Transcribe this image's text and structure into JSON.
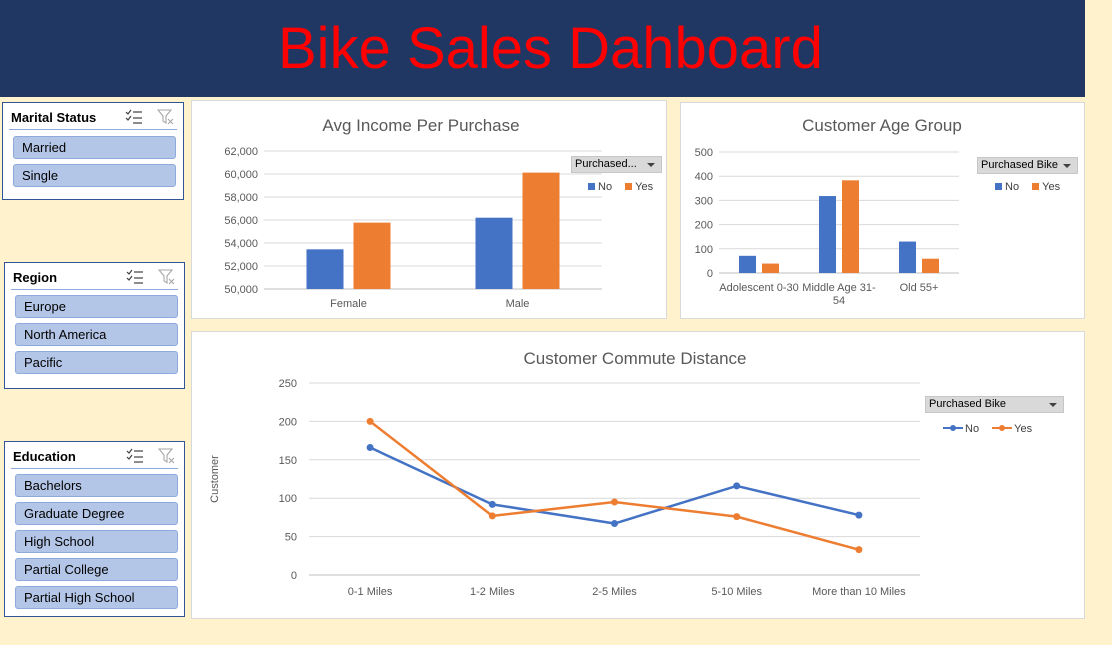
{
  "header": {
    "title": "Bike Sales Dahboard"
  },
  "colors": {
    "header_bg": "#203764",
    "title": "#ff0000",
    "no": "#4472c4",
    "yes": "#ed7d31",
    "background": "#fff2cc",
    "slicer_item": "#b4c6e7"
  },
  "slicers": {
    "marital": {
      "title": "Marital Status",
      "items": [
        "Married",
        "Single"
      ]
    },
    "region": {
      "title": "Region",
      "items": [
        "Europe",
        "North America",
        "Pacific"
      ]
    },
    "education": {
      "title": "Education",
      "items": [
        "Bachelors",
        "Graduate Degree",
        "High School",
        "Partial College",
        "Partial High School"
      ]
    },
    "icons": [
      "multi-select-icon",
      "clear-filter-icon"
    ]
  },
  "chart_data": [
    {
      "id": "income",
      "type": "bar",
      "title": "Avg Income Per Purchase",
      "categories": [
        "Female",
        "Male"
      ],
      "series": [
        {
          "name": "No",
          "values": [
            53450,
            56200
          ]
        },
        {
          "name": "Yes",
          "values": [
            55770,
            60120
          ]
        }
      ],
      "ylim": [
        50000,
        62000
      ],
      "yticks": [
        "62,000",
        "60,000",
        "58,000",
        "56,000",
        "54,000",
        "52,000",
        "50,000"
      ],
      "filter_label": "Purchased...",
      "legend_labels": [
        "No",
        "Yes"
      ],
      "legend": "right",
      "grid": true
    },
    {
      "id": "age",
      "type": "bar",
      "title": "Customer Age Group",
      "categories": [
        "Adolescent 0-30",
        "Middle Age 31-54",
        "Old 55+"
      ],
      "category_lines": [
        [
          "Adolescent 0-30"
        ],
        [
          "Middle Age 31-",
          "54"
        ],
        [
          "Old 55+"
        ]
      ],
      "series": [
        {
          "name": "No",
          "values": [
            71,
            318,
            130
          ]
        },
        {
          "name": "Yes",
          "values": [
            39,
            383,
            59
          ]
        }
      ],
      "ylim": [
        0,
        500
      ],
      "yticks": [
        "500",
        "400",
        "300",
        "200",
        "100",
        "0"
      ],
      "filter_label": "Purchased Bike",
      "legend_labels": [
        "No",
        "Yes"
      ],
      "legend": "right",
      "grid": true
    },
    {
      "id": "commute",
      "type": "line",
      "title": "Customer Commute Distance",
      "ylabel": "Customer",
      "categories": [
        "0-1 Miles",
        "1-2 Miles",
        "2-5 Miles",
        "5-10 Miles",
        "More than 10 Miles"
      ],
      "series": [
        {
          "name": "No",
          "values": [
            166,
            92,
            67,
            116,
            78
          ]
        },
        {
          "name": "Yes",
          "values": [
            200,
            77,
            95,
            76,
            33
          ]
        }
      ],
      "ylim": [
        0,
        250
      ],
      "yticks": [
        "250",
        "200",
        "150",
        "100",
        "50",
        "0"
      ],
      "filter_label": "Purchased Bike",
      "legend_labels": [
        "No",
        "Yes"
      ],
      "legend": "right",
      "grid": true
    }
  ]
}
